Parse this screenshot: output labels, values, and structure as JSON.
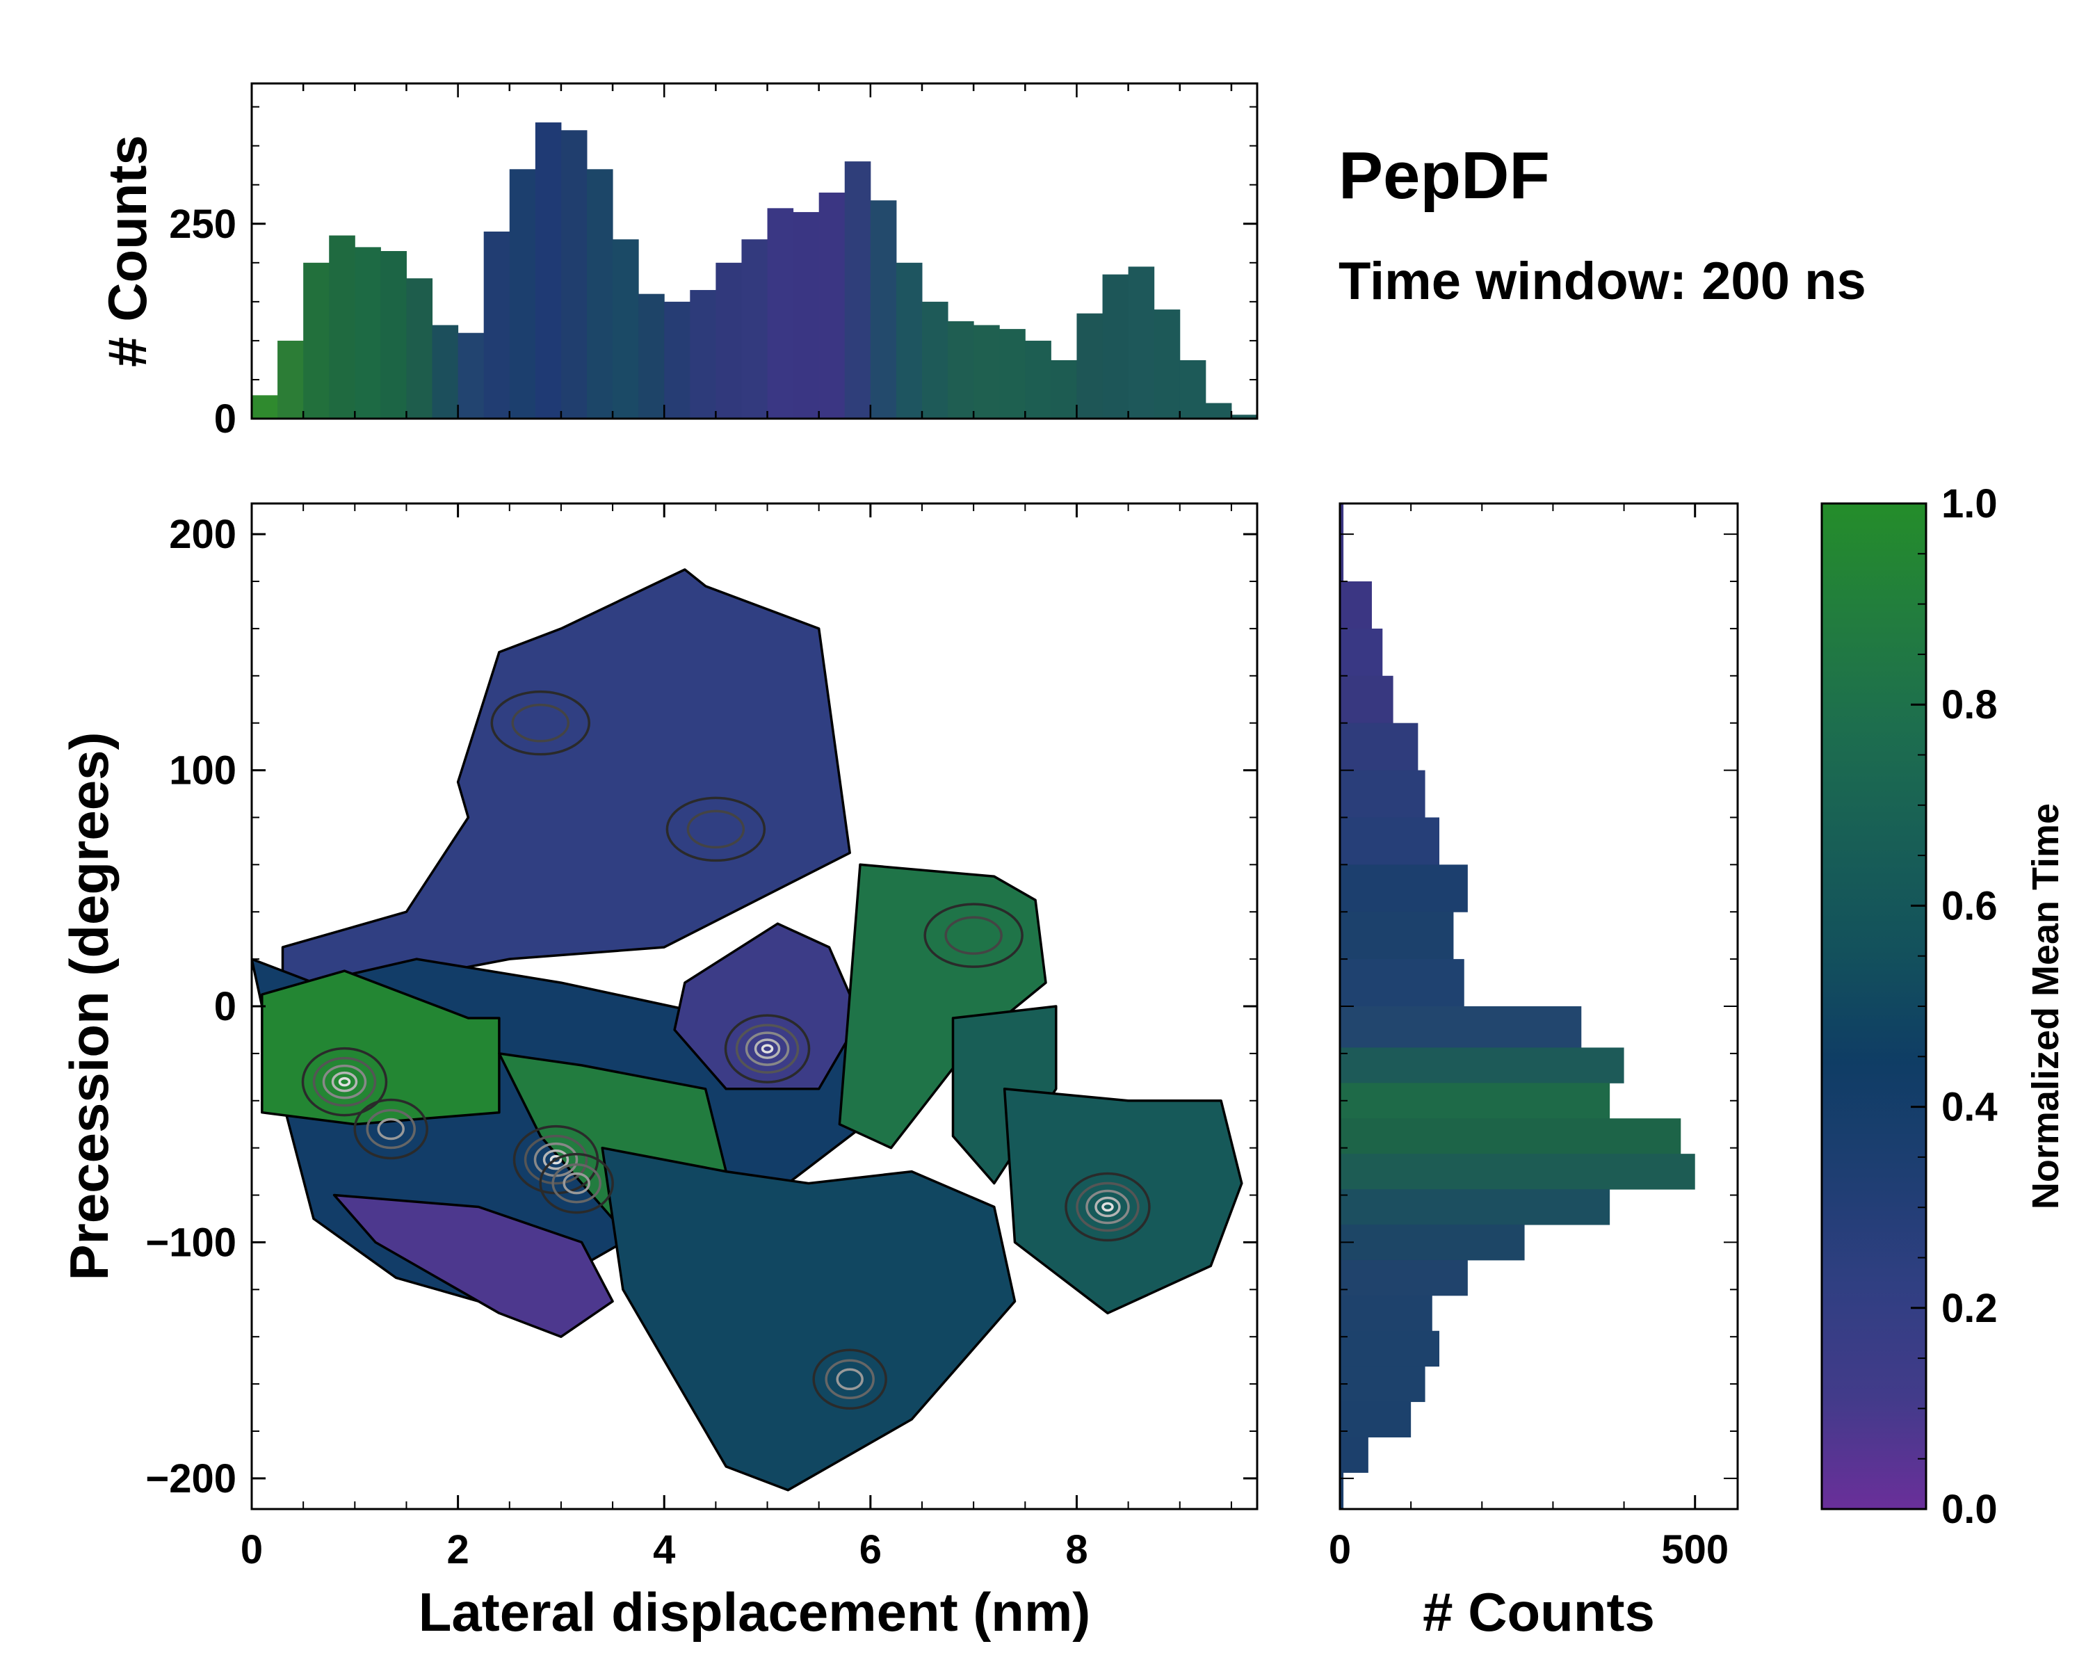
{
  "title": "PepDF",
  "subtitle": "Time window: 200 ns",
  "chart_data": [
    {
      "id": "top-histogram",
      "type": "bar",
      "ylabel": "# Counts",
      "xlim": [
        0,
        9.75
      ],
      "ylim": [
        0,
        430
      ],
      "yticks": [
        0,
        250
      ],
      "ytick_labels": [
        "0",
        "250"
      ],
      "bin_centers": [
        0.125,
        0.375,
        0.625,
        0.875,
        1.125,
        1.375,
        1.625,
        1.875,
        2.125,
        2.375,
        2.625,
        2.875,
        3.125,
        3.375,
        3.625,
        3.875,
        4.125,
        4.375,
        4.625,
        4.875,
        5.125,
        5.375,
        5.625,
        5.875,
        6.125,
        6.375,
        6.625,
        6.875,
        7.125,
        7.375,
        7.625,
        7.875,
        8.125,
        8.375,
        8.625,
        8.875,
        9.125,
        9.375,
        9.625
      ],
      "values": [
        30,
        100,
        200,
        235,
        220,
        215,
        180,
        120,
        110,
        240,
        320,
        380,
        370,
        320,
        230,
        160,
        150,
        165,
        200,
        230,
        270,
        265,
        290,
        330,
        280,
        200,
        150,
        125,
        120,
        115,
        100,
        75,
        135,
        185,
        195,
        140,
        75,
        20,
        5
      ],
      "colors": [
        "#2f8a2e",
        "#2c7d36",
        "#22703c",
        "#1f6a40",
        "#1d6a44",
        "#1c6545",
        "#1e5d4c",
        "#1c4f5c",
        "#224470",
        "#213d72",
        "#1c3f6e",
        "#1f3a74",
        "#203e6e",
        "#1c4668",
        "#1b4a66",
        "#1e4468",
        "#263d74",
        "#2d3b7a",
        "#31397c",
        "#333a7e",
        "#3a3784",
        "#3a3683",
        "#3b3683",
        "#2f3e7a",
        "#234a6c",
        "#1e5560",
        "#1e5a58",
        "#1f5e52",
        "#1f6050",
        "#1e6050",
        "#1d5e52",
        "#1d5c52",
        "#1e5656",
        "#1d5658",
        "#1e585a",
        "#1d5958",
        "#1d5a58",
        "#1d5a58",
        "#1d5a58"
      ]
    },
    {
      "id": "main-2d-map",
      "type": "heatmap",
      "xlabel": "Lateral displacement (nm)",
      "ylabel": "Precession (degrees)",
      "xlim": [
        0,
        9.75
      ],
      "ylim": [
        -213,
        213
      ],
      "xticks": [
        0,
        2,
        4,
        6,
        8
      ],
      "xtick_labels": [
        "0",
        "2",
        "4",
        "6",
        "8"
      ],
      "yticks": [
        200,
        100,
        0,
        -100,
        -200
      ],
      "ytick_labels": [
        "200",
        "100",
        "0",
        "−100",
        "−200"
      ],
      "colorbar_label": "Normalized Mean Time",
      "regions": [
        {
          "x": [
            2.0,
            2.4,
            3.0,
            4.2,
            4.4,
            5.5,
            5.8,
            4.0,
            2.5,
            1.3,
            0.3,
            0.3,
            1.5,
            2.1
          ],
          "y": [
            95,
            150,
            160,
            185,
            178,
            160,
            65,
            25,
            20,
            10,
            5,
            25,
            40,
            80
          ],
          "value": 0.22
        },
        {
          "x": [
            0.0,
            0.6,
            1.6,
            3.0,
            4.6,
            6.0,
            6.1,
            5.2,
            4.2,
            3.2,
            2.2,
            1.4,
            0.6,
            0.3
          ],
          "y": [
            20,
            10,
            20,
            10,
            -5,
            -10,
            -45,
            -75,
            -85,
            -110,
            -125,
            -115,
            -90,
            -40
          ],
          "value": 0.42
        },
        {
          "x": [
            0.1,
            0.9,
            1.8,
            2.1,
            2.4,
            2.4,
            1.0,
            0.1
          ],
          "y": [
            5,
            15,
            0,
            -5,
            -5,
            -45,
            -50,
            -45
          ],
          "value": 0.95
        },
        {
          "x": [
            2.4,
            3.2,
            4.4,
            4.6,
            4.2,
            3.5,
            2.8
          ],
          "y": [
            -20,
            -25,
            -35,
            -70,
            -85,
            -90,
            -55
          ],
          "value": 0.88
        },
        {
          "x": [
            0.8,
            2.2,
            3.2,
            3.5,
            3.0,
            2.4,
            1.2
          ],
          "y": [
            -80,
            -85,
            -100,
            -125,
            -140,
            -130,
            -100
          ],
          "value": 0.08
        },
        {
          "x": [
            4.2,
            5.1,
            5.6,
            5.9,
            5.5,
            4.6,
            4.1
          ],
          "y": [
            10,
            35,
            25,
            -5,
            -35,
            -35,
            -10
          ],
          "value": 0.15
        },
        {
          "x": [
            5.9,
            7.2,
            7.6,
            7.7,
            7.0,
            6.2,
            5.7
          ],
          "y": [
            60,
            55,
            45,
            10,
            -15,
            -60,
            -50
          ],
          "value": 0.82
        },
        {
          "x": [
            6.8,
            7.8,
            7.8,
            7.2,
            6.8
          ],
          "y": [
            -5,
            0,
            -35,
            -75,
            -55
          ],
          "value": 0.66
        },
        {
          "x": [
            7.3,
            8.5,
            9.4,
            9.6,
            9.3,
            8.3,
            7.4
          ],
          "y": [
            -35,
            -40,
            -40,
            -75,
            -110,
            -130,
            -100
          ],
          "value": 0.62
        },
        {
          "x": [
            3.4,
            4.6,
            5.4,
            6.4,
            7.2,
            7.4,
            6.4,
            5.2,
            4.6,
            3.6
          ],
          "y": [
            -60,
            -70,
            -75,
            -70,
            -85,
            -125,
            -175,
            -205,
            -195,
            -120
          ],
          "value": 0.5
        }
      ],
      "contour_centers": [
        {
          "x": 0.9,
          "y": -32,
          "level": "high"
        },
        {
          "x": 1.35,
          "y": -52,
          "level": "mid"
        },
        {
          "x": 2.95,
          "y": -65,
          "level": "high"
        },
        {
          "x": 3.15,
          "y": -75,
          "level": "mid"
        },
        {
          "x": 5.0,
          "y": -18,
          "level": "high"
        },
        {
          "x": 8.3,
          "y": -85,
          "level": "high"
        },
        {
          "x": 5.8,
          "y": -158,
          "level": "mid"
        },
        {
          "x": 2.8,
          "y": 120,
          "level": "low"
        },
        {
          "x": 4.5,
          "y": 75,
          "level": "low"
        },
        {
          "x": 7.0,
          "y": 30,
          "level": "low"
        }
      ]
    },
    {
      "id": "right-histogram",
      "type": "bar",
      "orientation": "horizontal",
      "xlabel": "# Counts",
      "xlim": [
        0,
        560
      ],
      "ylim": [
        -213,
        213
      ],
      "xticks": [
        0,
        500
      ],
      "xtick_labels": [
        "0",
        "500"
      ],
      "bin_centers": [
        190,
        170,
        150,
        130,
        110,
        90,
        70,
        50,
        30,
        10,
        -10,
        -25,
        -40,
        -55,
        -70,
        -85,
        -100,
        -115,
        -130,
        -145,
        -160,
        -175,
        -190,
        -205
      ],
      "values": [
        5,
        45,
        60,
        75,
        110,
        120,
        140,
        180,
        160,
        175,
        340,
        400,
        380,
        480,
        500,
        380,
        260,
        180,
        130,
        140,
        120,
        100,
        40,
        5
      ],
      "colors": [
        "#3b3683",
        "#3b3683",
        "#393884",
        "#383880",
        "#2f3c7c",
        "#2a3e7a",
        "#263f78",
        "#1c3f6e",
        "#1c416c",
        "#1f4270",
        "#22466e",
        "#1d5a58",
        "#1e6a48",
        "#1d6448",
        "#1d5c54",
        "#1c4f60",
        "#1d4666",
        "#20436c",
        "#1e426c",
        "#1d426c",
        "#1d426c",
        "#1c416c",
        "#1c406c",
        "#1c406c"
      ]
    },
    {
      "id": "colorbar",
      "type": "colorbar",
      "label": "Normalized Mean Time",
      "range": [
        0.0,
        1.0
      ],
      "ticks": [
        0.0,
        0.2,
        0.4,
        0.6,
        0.8,
        1.0
      ],
      "tick_labels": [
        "0.0",
        "0.2",
        "0.4",
        "0.6",
        "0.8",
        "1.0"
      ],
      "colormap": [
        "#6a2f9a",
        "#423b8a",
        "#303f82",
        "#1e3e72",
        "#0f3d65",
        "#13515c",
        "#185f56",
        "#1d6e4e",
        "#227d3e",
        "#248d2a"
      ]
    }
  ]
}
